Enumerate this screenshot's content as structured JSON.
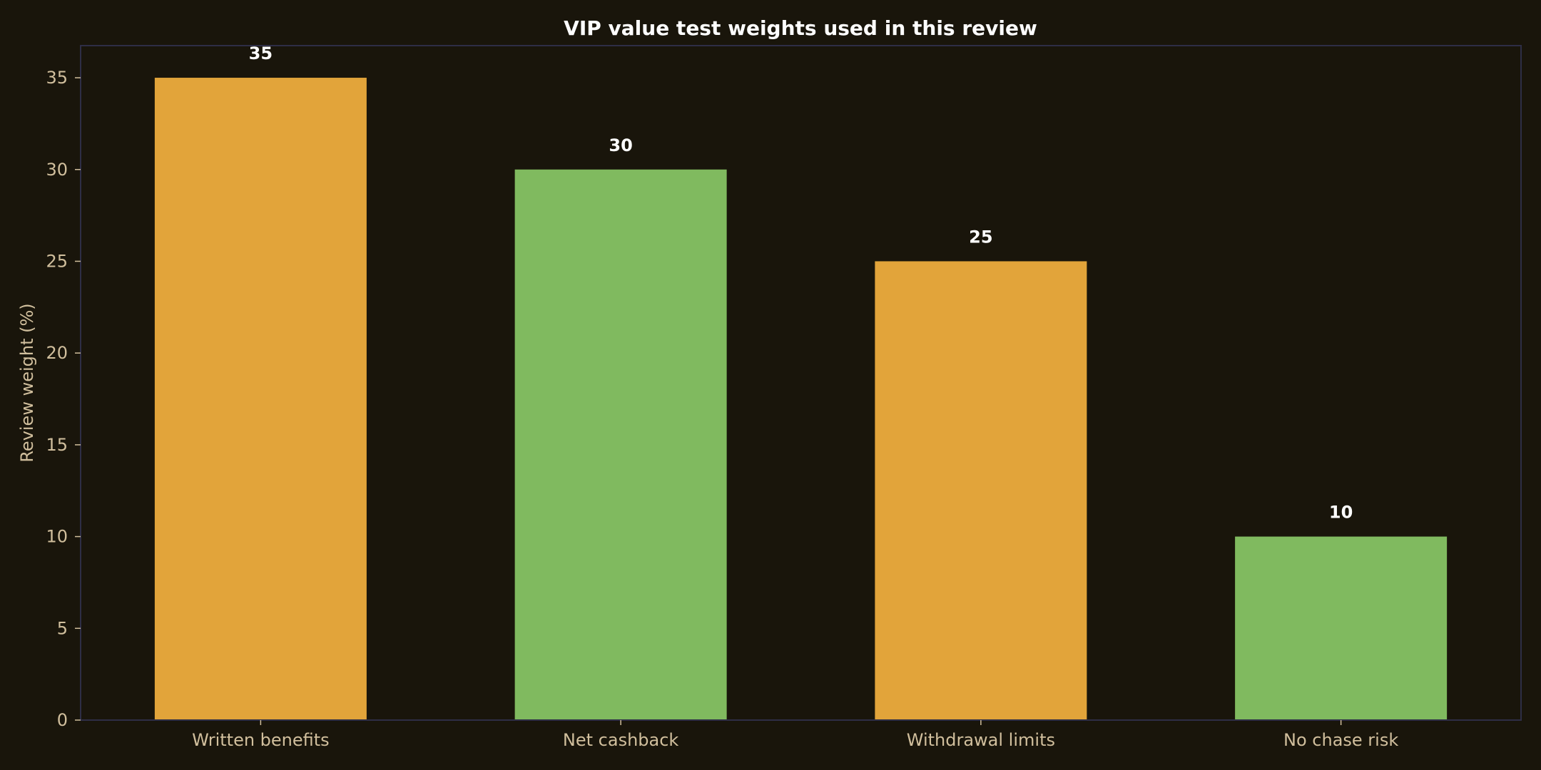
{
  "chart_data": {
    "type": "bar",
    "title": "VIP value test weights used in this review",
    "xlabel": "",
    "ylabel": "Review weight (%)",
    "categories": [
      "Written benefits",
      "Net cashback",
      "Withdrawal limits",
      "No chase risk"
    ],
    "values": [
      35,
      30,
      25,
      10
    ],
    "value_labels": [
      "35",
      "30",
      "25",
      "10"
    ],
    "ylim": [
      0,
      36.75
    ],
    "yticks": [
      0,
      5,
      10,
      15,
      20,
      25,
      30,
      35
    ],
    "ytick_labels": [
      "0",
      "5",
      "10",
      "15",
      "20",
      "25",
      "30",
      "35"
    ],
    "grid": false,
    "legend": "none",
    "colors": {
      "background": "#19150b",
      "axes_spine": "#2e2e46",
      "tick_text": "#d1bf9d",
      "title_text": "#ffffff",
      "value_text": "#ffffff",
      "bar_colors": [
        "#e2a43a",
        "#80ba5f",
        "#e2a43a",
        "#80ba5f"
      ]
    }
  }
}
